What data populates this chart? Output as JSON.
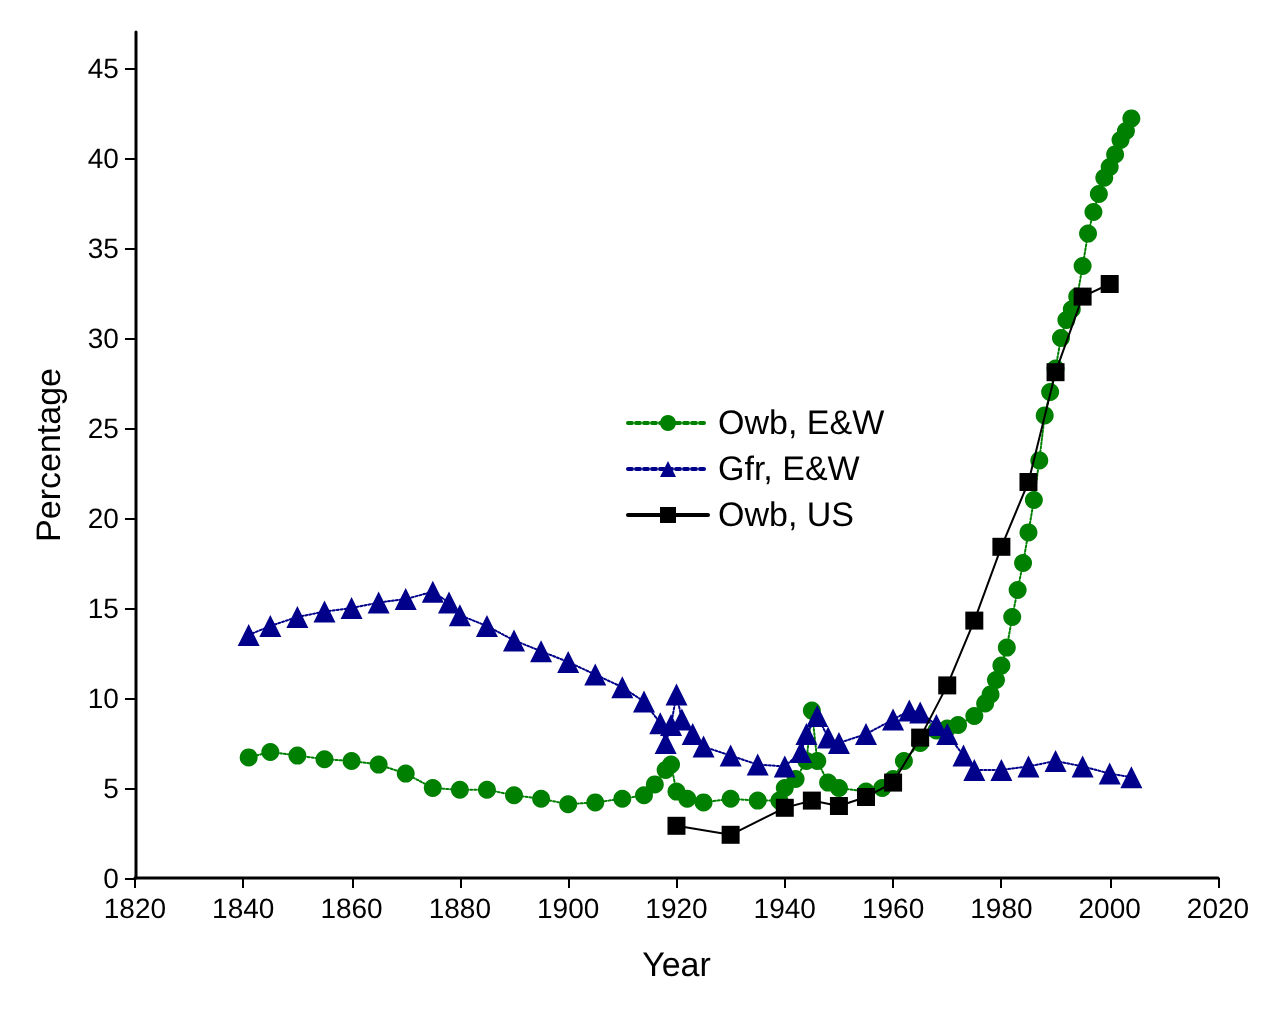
{
  "chart_data": {
    "type": "line",
    "xlabel": "Year",
    "ylabel": "Percentage",
    "xlim": [
      1820,
      2020
    ],
    "xticks": [
      1820,
      1840,
      1860,
      1880,
      1900,
      1920,
      1940,
      1960,
      1980,
      2000,
      2020
    ],
    "ylim": [
      0,
      47
    ],
    "yticks": [
      0,
      5,
      10,
      15,
      20,
      25,
      30,
      35,
      40,
      45
    ],
    "grid": false,
    "legend": "center",
    "series": [
      {
        "name": "Owb, E&W",
        "color": "#008000",
        "marker": "circle",
        "line_style": "dotted",
        "x": [
          1841,
          1845,
          1850,
          1855,
          1860,
          1865,
          1870,
          1875,
          1880,
          1885,
          1890,
          1895,
          1900,
          1905,
          1910,
          1914,
          1916,
          1918,
          1919,
          1920,
          1922,
          1925,
          1930,
          1935,
          1939,
          1940,
          1942,
          1944,
          1945,
          1946,
          1948,
          1950,
          1955,
          1958,
          1960,
          1962,
          1965,
          1968,
          1970,
          1972,
          1975,
          1977,
          1978,
          1979,
          1980,
          1981,
          1982,
          1983,
          1984,
          1985,
          1986,
          1987,
          1988,
          1989,
          1990,
          1991,
          1992,
          1993,
          1994,
          1995,
          1996,
          1997,
          1998,
          1999,
          2000,
          2001,
          2002,
          2003,
          2004
        ],
        "values": [
          6.7,
          7.0,
          6.8,
          6.6,
          6.5,
          6.3,
          5.8,
          5.0,
          4.9,
          4.9,
          4.6,
          4.4,
          4.1,
          4.2,
          4.4,
          4.6,
          5.2,
          6.0,
          6.3,
          4.8,
          4.4,
          4.2,
          4.4,
          4.3,
          4.3,
          5.0,
          5.5,
          6.5,
          9.3,
          6.5,
          5.3,
          5.0,
          4.8,
          5.0,
          5.5,
          6.5,
          7.5,
          8.2,
          8.3,
          8.5,
          9.0,
          9.7,
          10.2,
          11.0,
          11.8,
          12.8,
          14.5,
          16.0,
          17.5,
          19.2,
          21.0,
          23.2,
          25.7,
          27.0,
          28.3,
          30.0,
          31.0,
          31.6,
          32.3,
          34.0,
          35.8,
          37.0,
          38.0,
          38.9,
          39.5,
          40.2,
          41.0,
          41.5,
          42.2
        ]
      },
      {
        "name": "Gfr, E&W",
        "color": "#00008b",
        "marker": "triangle",
        "line_style": "dotted",
        "x": [
          1841,
          1845,
          1850,
          1855,
          1860,
          1865,
          1870,
          1875,
          1878,
          1880,
          1885,
          1890,
          1895,
          1900,
          1905,
          1910,
          1914,
          1917,
          1918,
          1919,
          1920,
          1921,
          1923,
          1925,
          1930,
          1935,
          1940,
          1943,
          1944,
          1946,
          1948,
          1950,
          1955,
          1960,
          1963,
          1965,
          1968,
          1970,
          1973,
          1975,
          1980,
          1985,
          1990,
          1995,
          2000,
          2004
        ],
        "values": [
          13.5,
          14.0,
          14.5,
          14.8,
          15.0,
          15.3,
          15.5,
          15.9,
          15.3,
          14.6,
          14.0,
          13.2,
          12.6,
          12.0,
          11.3,
          10.6,
          9.8,
          8.6,
          7.5,
          8.5,
          10.2,
          8.8,
          8.0,
          7.3,
          6.8,
          6.3,
          6.2,
          7.0,
          8.0,
          9.0,
          7.8,
          7.5,
          8.0,
          8.8,
          9.3,
          9.2,
          8.5,
          8.0,
          6.8,
          6.0,
          6.0,
          6.2,
          6.5,
          6.2,
          5.8,
          5.6
        ]
      },
      {
        "name": "Owb, US",
        "color": "#000000",
        "marker": "square",
        "line_style": "solid",
        "x": [
          1920,
          1930,
          1940,
          1945,
          1950,
          1955,
          1960,
          1965,
          1970,
          1975,
          1980,
          1985,
          1990,
          1995,
          2000
        ],
        "values": [
          2.9,
          2.4,
          3.9,
          4.3,
          4.0,
          4.5,
          5.3,
          7.8,
          10.7,
          14.3,
          18.4,
          22.0,
          28.1,
          32.3,
          33.0
        ]
      }
    ]
  }
}
